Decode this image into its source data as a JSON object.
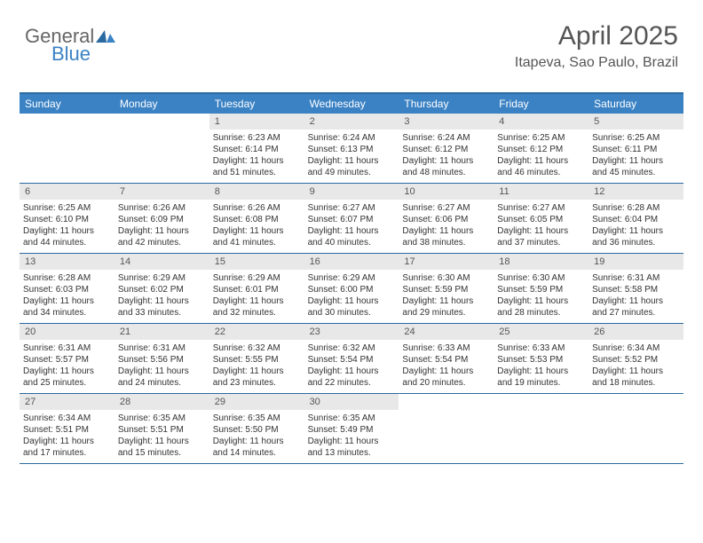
{
  "logo": {
    "text1": "General",
    "text2": "Blue"
  },
  "header": {
    "month": "April 2025",
    "location": "Itapeva, Sao Paulo, Brazil"
  },
  "colors": {
    "header_blue": "#3b82c4",
    "border_blue": "#2a6aa0",
    "daynum_bg": "#e8e8e8",
    "text": "#333333",
    "title_text": "#555555"
  },
  "dow": [
    "Sunday",
    "Monday",
    "Tuesday",
    "Wednesday",
    "Thursday",
    "Friday",
    "Saturday"
  ],
  "weeks": [
    [
      null,
      null,
      {
        "n": "1",
        "sr": "Sunrise: 6:23 AM",
        "ss": "Sunset: 6:14 PM",
        "dl": "Daylight: 11 hours and 51 minutes."
      },
      {
        "n": "2",
        "sr": "Sunrise: 6:24 AM",
        "ss": "Sunset: 6:13 PM",
        "dl": "Daylight: 11 hours and 49 minutes."
      },
      {
        "n": "3",
        "sr": "Sunrise: 6:24 AM",
        "ss": "Sunset: 6:12 PM",
        "dl": "Daylight: 11 hours and 48 minutes."
      },
      {
        "n": "4",
        "sr": "Sunrise: 6:25 AM",
        "ss": "Sunset: 6:12 PM",
        "dl": "Daylight: 11 hours and 46 minutes."
      },
      {
        "n": "5",
        "sr": "Sunrise: 6:25 AM",
        "ss": "Sunset: 6:11 PM",
        "dl": "Daylight: 11 hours and 45 minutes."
      }
    ],
    [
      {
        "n": "6",
        "sr": "Sunrise: 6:25 AM",
        "ss": "Sunset: 6:10 PM",
        "dl": "Daylight: 11 hours and 44 minutes."
      },
      {
        "n": "7",
        "sr": "Sunrise: 6:26 AM",
        "ss": "Sunset: 6:09 PM",
        "dl": "Daylight: 11 hours and 42 minutes."
      },
      {
        "n": "8",
        "sr": "Sunrise: 6:26 AM",
        "ss": "Sunset: 6:08 PM",
        "dl": "Daylight: 11 hours and 41 minutes."
      },
      {
        "n": "9",
        "sr": "Sunrise: 6:27 AM",
        "ss": "Sunset: 6:07 PM",
        "dl": "Daylight: 11 hours and 40 minutes."
      },
      {
        "n": "10",
        "sr": "Sunrise: 6:27 AM",
        "ss": "Sunset: 6:06 PM",
        "dl": "Daylight: 11 hours and 38 minutes."
      },
      {
        "n": "11",
        "sr": "Sunrise: 6:27 AM",
        "ss": "Sunset: 6:05 PM",
        "dl": "Daylight: 11 hours and 37 minutes."
      },
      {
        "n": "12",
        "sr": "Sunrise: 6:28 AM",
        "ss": "Sunset: 6:04 PM",
        "dl": "Daylight: 11 hours and 36 minutes."
      }
    ],
    [
      {
        "n": "13",
        "sr": "Sunrise: 6:28 AM",
        "ss": "Sunset: 6:03 PM",
        "dl": "Daylight: 11 hours and 34 minutes."
      },
      {
        "n": "14",
        "sr": "Sunrise: 6:29 AM",
        "ss": "Sunset: 6:02 PM",
        "dl": "Daylight: 11 hours and 33 minutes."
      },
      {
        "n": "15",
        "sr": "Sunrise: 6:29 AM",
        "ss": "Sunset: 6:01 PM",
        "dl": "Daylight: 11 hours and 32 minutes."
      },
      {
        "n": "16",
        "sr": "Sunrise: 6:29 AM",
        "ss": "Sunset: 6:00 PM",
        "dl": "Daylight: 11 hours and 30 minutes."
      },
      {
        "n": "17",
        "sr": "Sunrise: 6:30 AM",
        "ss": "Sunset: 5:59 PM",
        "dl": "Daylight: 11 hours and 29 minutes."
      },
      {
        "n": "18",
        "sr": "Sunrise: 6:30 AM",
        "ss": "Sunset: 5:59 PM",
        "dl": "Daylight: 11 hours and 28 minutes."
      },
      {
        "n": "19",
        "sr": "Sunrise: 6:31 AM",
        "ss": "Sunset: 5:58 PM",
        "dl": "Daylight: 11 hours and 27 minutes."
      }
    ],
    [
      {
        "n": "20",
        "sr": "Sunrise: 6:31 AM",
        "ss": "Sunset: 5:57 PM",
        "dl": "Daylight: 11 hours and 25 minutes."
      },
      {
        "n": "21",
        "sr": "Sunrise: 6:31 AM",
        "ss": "Sunset: 5:56 PM",
        "dl": "Daylight: 11 hours and 24 minutes."
      },
      {
        "n": "22",
        "sr": "Sunrise: 6:32 AM",
        "ss": "Sunset: 5:55 PM",
        "dl": "Daylight: 11 hours and 23 minutes."
      },
      {
        "n": "23",
        "sr": "Sunrise: 6:32 AM",
        "ss": "Sunset: 5:54 PM",
        "dl": "Daylight: 11 hours and 22 minutes."
      },
      {
        "n": "24",
        "sr": "Sunrise: 6:33 AM",
        "ss": "Sunset: 5:54 PM",
        "dl": "Daylight: 11 hours and 20 minutes."
      },
      {
        "n": "25",
        "sr": "Sunrise: 6:33 AM",
        "ss": "Sunset: 5:53 PM",
        "dl": "Daylight: 11 hours and 19 minutes."
      },
      {
        "n": "26",
        "sr": "Sunrise: 6:34 AM",
        "ss": "Sunset: 5:52 PM",
        "dl": "Daylight: 11 hours and 18 minutes."
      }
    ],
    [
      {
        "n": "27",
        "sr": "Sunrise: 6:34 AM",
        "ss": "Sunset: 5:51 PM",
        "dl": "Daylight: 11 hours and 17 minutes."
      },
      {
        "n": "28",
        "sr": "Sunrise: 6:35 AM",
        "ss": "Sunset: 5:51 PM",
        "dl": "Daylight: 11 hours and 15 minutes."
      },
      {
        "n": "29",
        "sr": "Sunrise: 6:35 AM",
        "ss": "Sunset: 5:50 PM",
        "dl": "Daylight: 11 hours and 14 minutes."
      },
      {
        "n": "30",
        "sr": "Sunrise: 6:35 AM",
        "ss": "Sunset: 5:49 PM",
        "dl": "Daylight: 11 hours and 13 minutes."
      },
      null,
      null,
      null
    ]
  ]
}
